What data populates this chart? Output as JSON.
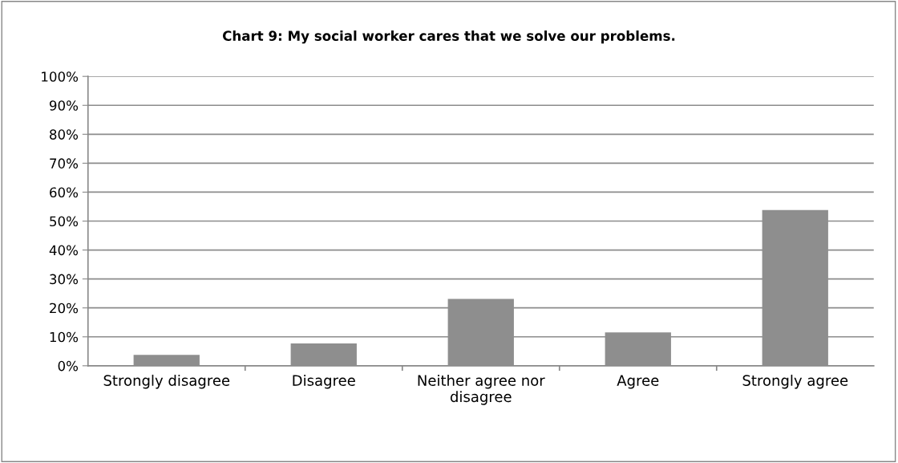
{
  "chart_data": {
    "type": "bar",
    "title": "Chart 9: My social worker cares that we solve our problems.",
    "categories": [
      "Strongly disagree",
      "Disagree",
      "Neither agree nor\ndisagree",
      "Agree",
      "Strongly agree"
    ],
    "values": [
      3.8,
      7.7,
      23.1,
      11.5,
      53.8
    ],
    "color": "#8e8e8e",
    "ylim": [
      0,
      100
    ],
    "yticks": [
      {
        "value": 0,
        "label": "0%"
      },
      {
        "value": 10,
        "label": "10%"
      },
      {
        "value": 20,
        "label": "20%"
      },
      {
        "value": 30,
        "label": "30%"
      },
      {
        "value": 40,
        "label": "40%"
      },
      {
        "value": 50,
        "label": "50%"
      },
      {
        "value": 60,
        "label": "60%"
      },
      {
        "value": 70,
        "label": "70%"
      },
      {
        "value": 80,
        "label": "80%"
      },
      {
        "value": 90,
        "label": "90%"
      },
      {
        "value": 100,
        "label": "100%"
      }
    ],
    "grid": "y",
    "legend": false
  }
}
